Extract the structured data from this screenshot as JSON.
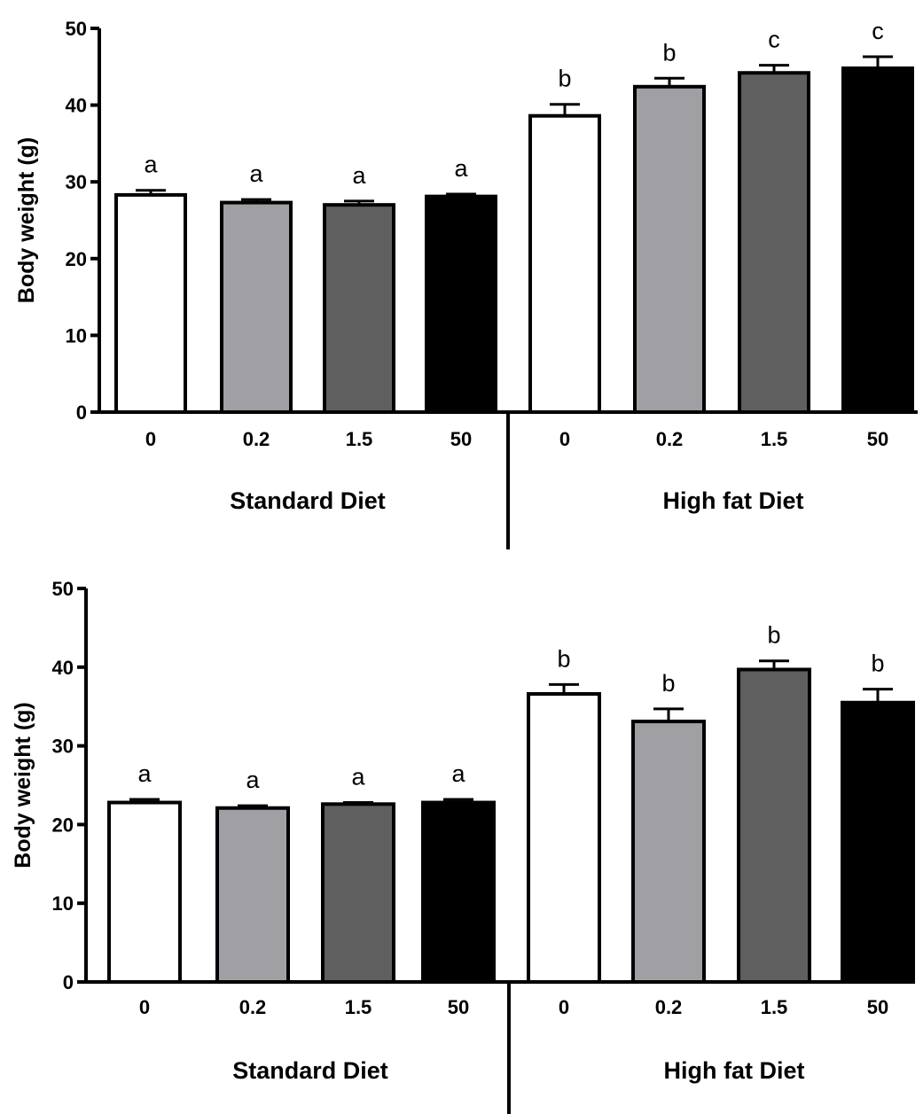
{
  "chart_data": [
    {
      "type": "bar",
      "ylabel": "Body weight (g)",
      "ylim": [
        0,
        50
      ],
      "yticks": [
        "0",
        "10",
        "20",
        "30",
        "40",
        "50"
      ],
      "groups": [
        "Standard Diet",
        "High fat Diet"
      ],
      "categories": [
        "0",
        "0.2",
        "1.5",
        "50",
        "0",
        "0.2",
        "1.5",
        "50"
      ],
      "values": [
        28.3,
        27.3,
        27.0,
        28.1,
        38.6,
        42.4,
        44.2,
        44.8
      ],
      "errors": [
        0.6,
        0.4,
        0.5,
        0.3,
        1.5,
        1.1,
        1.0,
        1.5
      ],
      "sig_labels": [
        "a",
        "a",
        "a",
        "a",
        "b",
        "b",
        "c",
        "c"
      ],
      "colors": [
        "#ffffff",
        "#a0a0a4",
        "#5f5f5f",
        "#000000",
        "#ffffff",
        "#a0a0a4",
        "#5f5f5f",
        "#000000"
      ],
      "grid": false
    },
    {
      "type": "bar",
      "ylabel": "Body weight (g)",
      "ylim": [
        0,
        50
      ],
      "yticks": [
        "0",
        "10",
        "20",
        "30",
        "40",
        "50"
      ],
      "groups": [
        "Standard Diet",
        "High fat Diet"
      ],
      "categories": [
        "0",
        "0.2",
        "1.5",
        "50",
        "0",
        "0.2",
        "1.5",
        "50"
      ],
      "values": [
        22.8,
        22.1,
        22.6,
        22.8,
        36.6,
        33.1,
        39.7,
        35.5
      ],
      "errors": [
        0.4,
        0.3,
        0.2,
        0.4,
        1.2,
        1.6,
        1.1,
        1.7
      ],
      "sig_labels": [
        "a",
        "a",
        "a",
        "a",
        "b",
        "b",
        "b",
        "b"
      ],
      "colors": [
        "#ffffff",
        "#a0a0a4",
        "#5f5f5f",
        "#000000",
        "#ffffff",
        "#a0a0a4",
        "#5f5f5f",
        "#000000"
      ],
      "grid": false
    }
  ]
}
